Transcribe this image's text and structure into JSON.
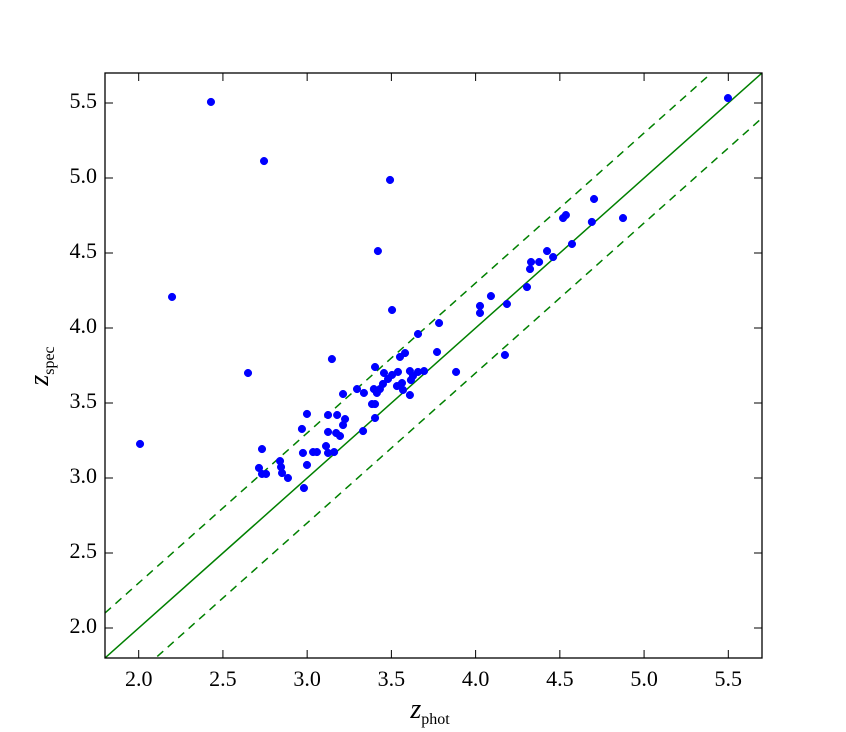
{
  "chart_data": {
    "type": "scatter",
    "xlabel": "z",
    "xlabel_sub": "phot",
    "ylabel": "z",
    "ylabel_sub": "spec",
    "xlim": [
      1.8,
      5.7
    ],
    "ylim": [
      1.8,
      5.7
    ],
    "xticks": [
      {
        "value": 2,
        "label": "2.0"
      },
      2.5,
      {
        "value": 3,
        "label": "3.0"
      },
      3.5,
      {
        "value": 4,
        "label": "4.0"
      },
      4.5,
      {
        "value": 5,
        "label": "5.0"
      },
      5.5
    ],
    "yticks": [
      {
        "value": 2,
        "label": "2.0"
      },
      2.5,
      {
        "value": 3,
        "label": "3.0"
      },
      3.5,
      {
        "value": 4,
        "label": "4.0"
      },
      4.5,
      {
        "value": 5,
        "label": "5.0"
      },
      5.5
    ],
    "color": "#0000ff",
    "reference_lines": [
      {
        "offset": 0,
        "style": "solid",
        "color": "#008000"
      },
      {
        "offset": 0.3,
        "style": "dashed",
        "color": "#008000"
      },
      {
        "offset": -0.3,
        "style": "dashed",
        "color": "#008000"
      }
    ],
    "x": [
      2.008,
      2.198,
      2.429,
      2.649,
      2.744,
      3.492,
      3.42,
      3.504,
      3.147,
      5.498,
      4.703,
      4.536,
      4.519,
      4.69,
      4.875,
      4.572,
      4.424,
      4.46,
      4.377,
      4.329,
      4.323,
      4.305,
      4.091,
      4.026,
      4.026,
      4.186,
      4.174,
      3.884,
      3.783,
      3.771,
      3.658,
      3.581,
      3.551,
      3.403,
      3.694,
      3.658,
      3.61,
      3.628,
      3.616,
      3.539,
      3.504,
      3.48,
      3.456,
      3.563,
      3.533,
      3.569,
      3.61,
      3.45,
      3.432,
      3.414,
      3.396,
      3.296,
      3.337,
      3.213,
      3.403,
      3.385,
      3.403,
      3.332,
      3.225,
      3.213,
      3.172,
      3.178,
      3.124,
      3.124,
      3.195,
      3.112,
      3.124,
      3.16,
      3.058,
      3.035,
      2.999,
      2.975,
      2.969,
      2.999,
      2.981,
      2.839,
      2.845,
      2.851,
      2.886,
      2.732,
      2.714,
      2.732,
      2.756
    ],
    "values": [
      3.227,
      4.207,
      5.507,
      3.7,
      5.113,
      4.987,
      4.513,
      4.12,
      3.793,
      5.533,
      4.86,
      4.753,
      4.733,
      4.707,
      4.733,
      4.56,
      4.513,
      4.473,
      4.44,
      4.44,
      4.393,
      4.273,
      4.213,
      4.147,
      4.1,
      4.16,
      3.82,
      3.707,
      4.033,
      3.84,
      3.96,
      3.833,
      3.807,
      3.74,
      3.713,
      3.707,
      3.713,
      3.68,
      3.653,
      3.707,
      3.687,
      3.66,
      3.7,
      3.633,
      3.613,
      3.587,
      3.553,
      3.627,
      3.593,
      3.567,
      3.593,
      3.593,
      3.567,
      3.56,
      3.493,
      3.493,
      3.4,
      3.313,
      3.393,
      3.353,
      3.3,
      3.42,
      3.42,
      3.307,
      3.28,
      3.213,
      3.167,
      3.173,
      3.173,
      3.173,
      3.087,
      3.167,
      3.327,
      3.427,
      2.933,
      3.113,
      3.073,
      3.033,
      3.0,
      3.193,
      3.067,
      3.027,
      3.027
    ]
  }
}
